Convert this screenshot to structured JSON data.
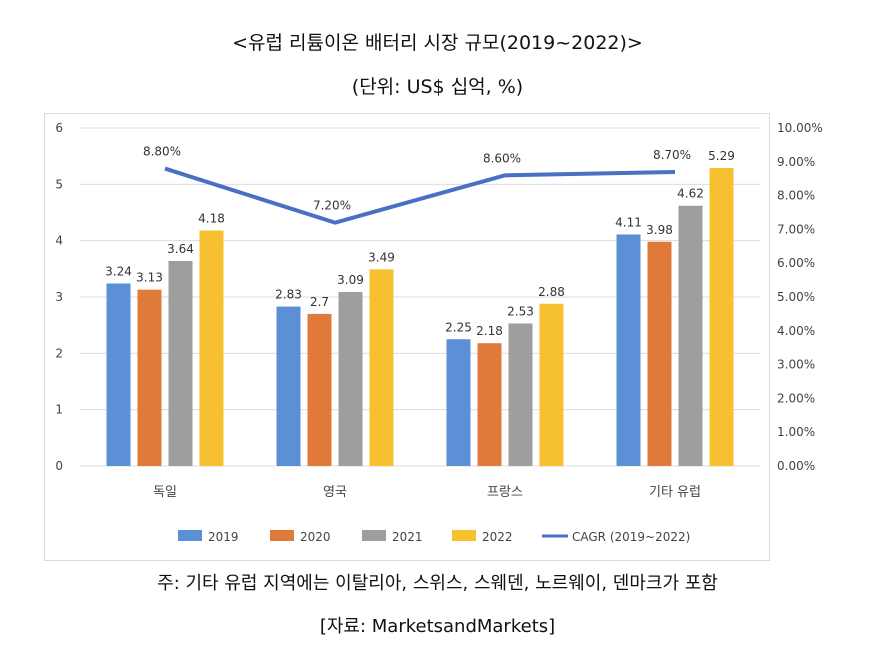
{
  "title": "<유럽 리튬이온 배터리 시장 규모(2019~2022)>",
  "subtitle": "(단위: US$ 십억, %)",
  "footnote": "주: 기타 유럽 지역에는 이탈리아, 스위스, 스웨덴, 노르웨이, 덴마크가 포함",
  "source": "[자료: MarketsandMarkets]",
  "chart_data": {
    "type": "bar",
    "categories": [
      "독일",
      "영국",
      "프랑스",
      "기타 유럽"
    ],
    "series": [
      {
        "name": "2019",
        "values": [
          3.24,
          2.83,
          2.25,
          4.11
        ],
        "color": "#5b8fd6",
        "labels": [
          "3.24",
          "2.83",
          "2.25",
          "4.11"
        ]
      },
      {
        "name": "2020",
        "values": [
          3.13,
          2.7,
          2.18,
          3.98
        ],
        "color": "#e07a3a",
        "labels": [
          "3.13",
          "2.7",
          "2.18",
          "3.98"
        ]
      },
      {
        "name": "2021",
        "values": [
          3.64,
          3.09,
          2.53,
          4.62
        ],
        "color": "#9e9e9e",
        "labels": [
          "3.64",
          "3.09",
          "2.53",
          "4.62"
        ]
      },
      {
        "name": "2022",
        "values": [
          4.18,
          3.49,
          2.88,
          5.29
        ],
        "color": "#f7c030",
        "labels": [
          "4.18",
          "3.49",
          "2.88",
          "5.29"
        ]
      }
    ],
    "line_series": {
      "name": "CAGR (2019~2022)",
      "values": [
        8.8,
        7.2,
        8.6,
        8.7
      ],
      "labels": [
        "8.80%",
        "7.20%",
        "8.60%",
        "8.70%"
      ],
      "color": "#4a6fc4"
    },
    "ylim": [
      0,
      6
    ],
    "y_ticks": [
      "0",
      "1",
      "2",
      "3",
      "4",
      "5",
      "6"
    ],
    "y2lim": [
      0,
      10
    ],
    "y2_ticks": [
      "0.00%",
      "1.00%",
      "2.00%",
      "3.00%",
      "4.00%",
      "5.00%",
      "6.00%",
      "7.00%",
      "8.00%",
      "9.00%",
      "10.00%"
    ],
    "grid": true,
    "legend_position": "bottom"
  }
}
